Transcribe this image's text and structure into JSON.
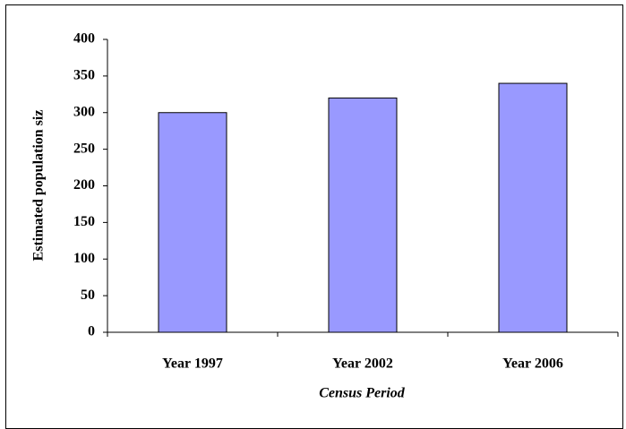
{
  "chart_data": {
    "type": "bar",
    "categories": [
      "Year 1997",
      "Year 2002",
      "Year 2006"
    ],
    "values": [
      300,
      320,
      340
    ],
    "color": "#9999ff",
    "ylim": [
      0,
      400
    ],
    "yticks": [
      0,
      50,
      100,
      150,
      200,
      250,
      300,
      350,
      400
    ],
    "ylabel": "Estimated population siz",
    "xlabel": "Census Period",
    "grid": false
  }
}
